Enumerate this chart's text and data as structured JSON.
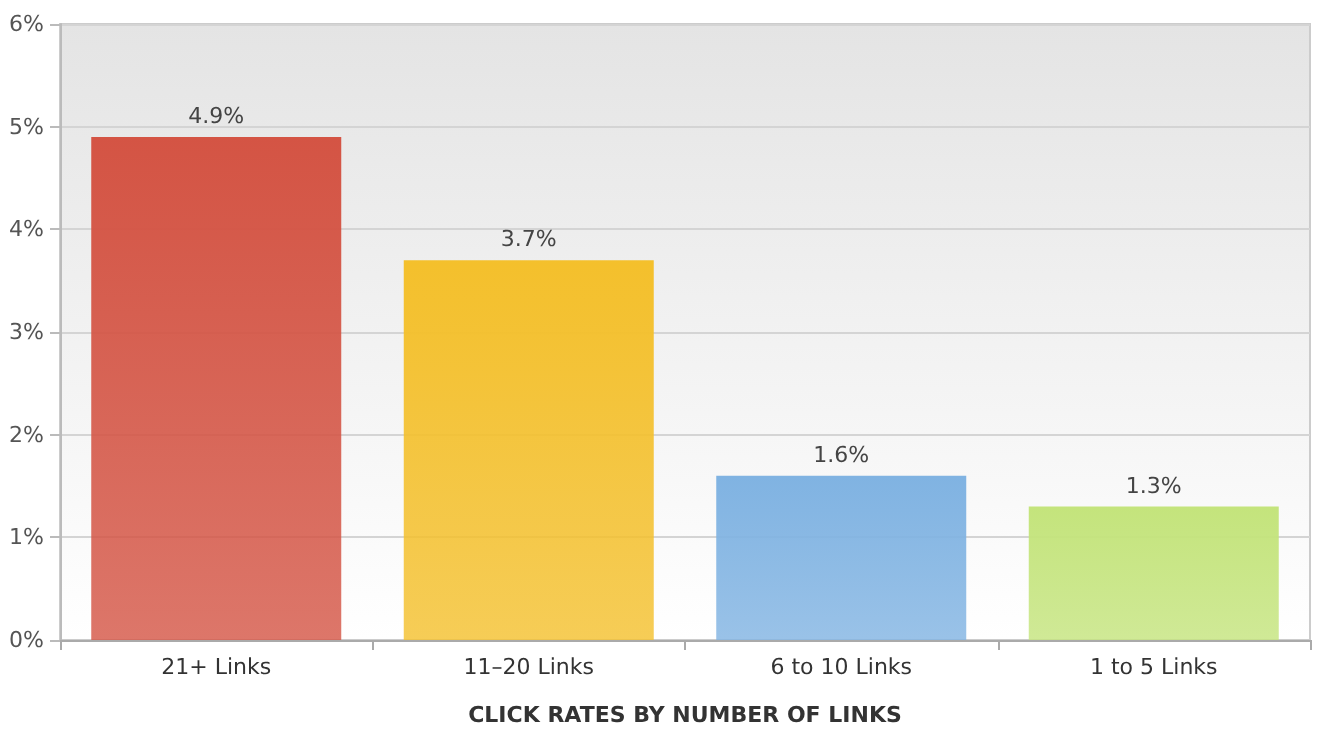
{
  "chart_data": {
    "type": "bar",
    "xlabel": "CLICK RATES BY NUMBER OF LINKS",
    "categories": [
      "21+ Links",
      "11–20 Links",
      "6 to 10 Links",
      "1 to 5 Links"
    ],
    "values": [
      4.9,
      3.7,
      1.6,
      1.3
    ],
    "value_labels": [
      "4.9%",
      "3.7%",
      "1.6%",
      "1.3%"
    ],
    "colors": [
      "#d45444",
      "#f4c02c",
      "#80b3e2",
      "#c4e47c"
    ],
    "ylim": [
      0,
      6
    ],
    "yticks": [
      {
        "value": 0,
        "label": "0%"
      },
      {
        "value": 1,
        "label": "1%"
      },
      {
        "value": 2,
        "label": "2%"
      },
      {
        "value": 3,
        "label": "3%"
      },
      {
        "value": 4,
        "label": "4%"
      },
      {
        "value": 5,
        "label": "5%"
      },
      {
        "value": 6,
        "label": "6%"
      }
    ],
    "grid": "y"
  }
}
